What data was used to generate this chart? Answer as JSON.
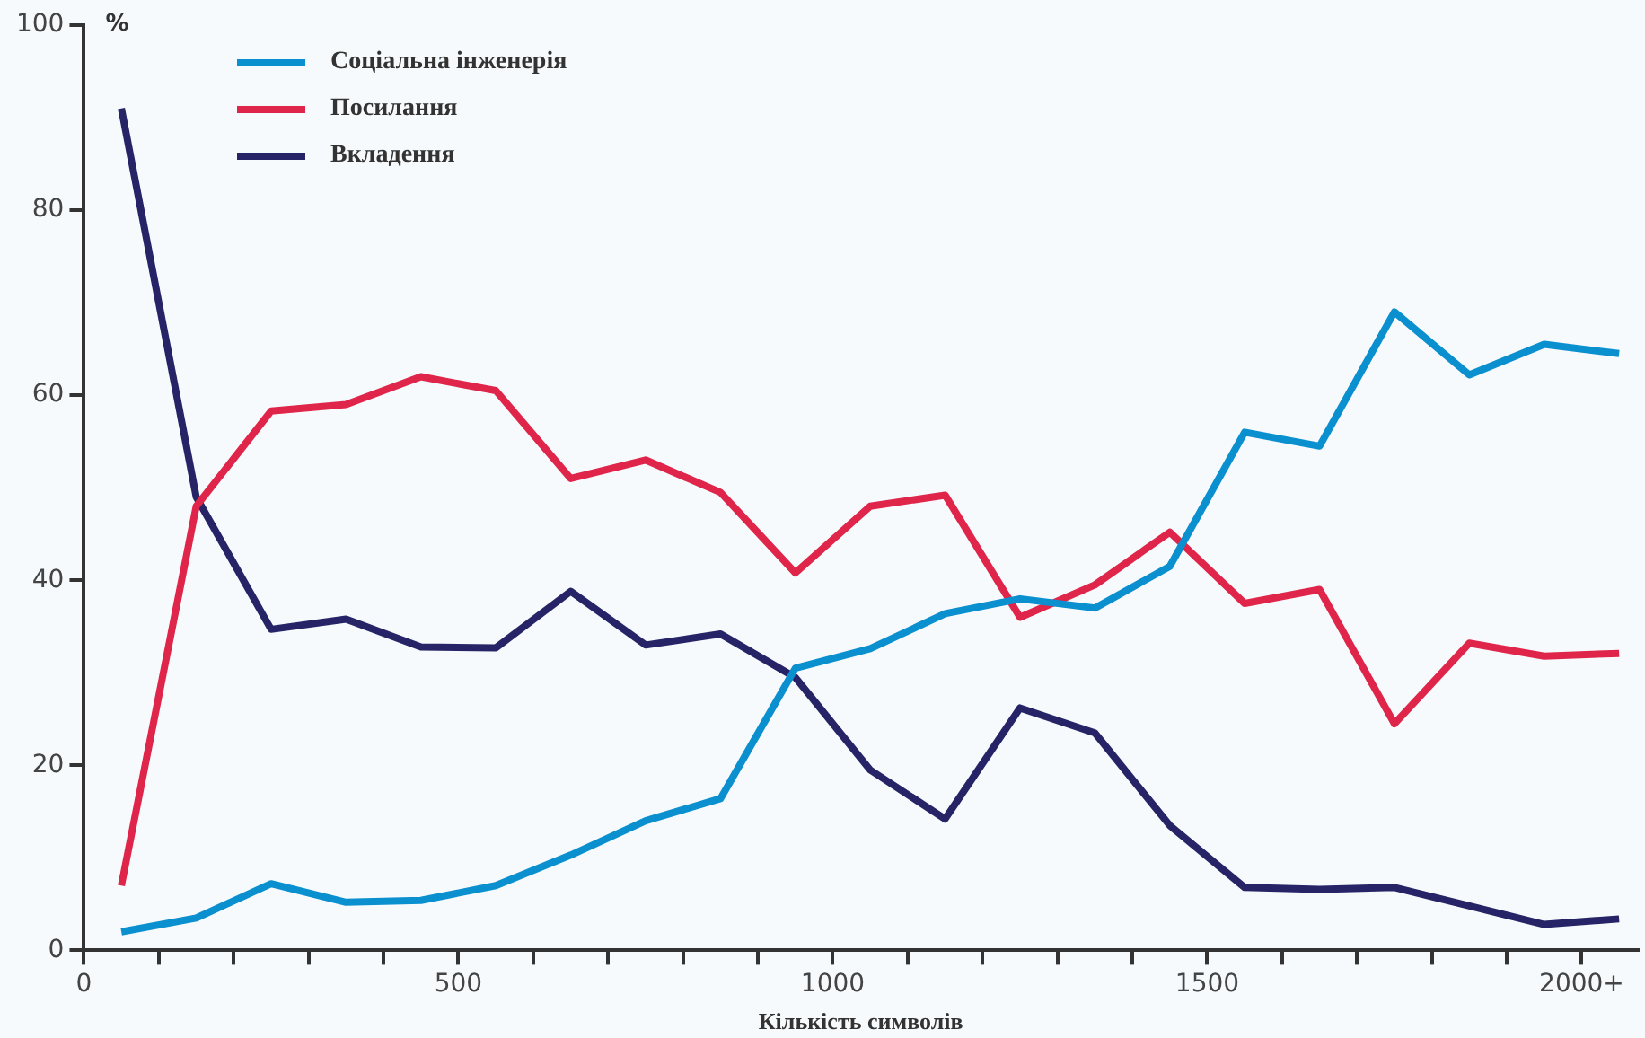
{
  "chart_data": {
    "type": "line",
    "xlabel": "Кількість символів",
    "ylabel": "%",
    "x": [
      50,
      150,
      250,
      350,
      450,
      550,
      650,
      750,
      850,
      950,
      1050,
      1150,
      1250,
      1350,
      1450,
      1550,
      1650,
      1750,
      1850,
      1950,
      2050
    ],
    "series": [
      {
        "name": "Соціальна інженерія",
        "color": "#0a8fcf",
        "values": [
          2,
          3.5,
          7.2,
          5.2,
          5.4,
          7,
          10.3,
          14,
          16.4,
          30.5,
          32.6,
          36.4,
          38,
          37,
          41.5,
          56,
          54.5,
          69,
          62.2,
          65.5,
          64.5
        ]
      },
      {
        "name": "Посилання",
        "color": "#e0254a",
        "values": [
          7,
          48,
          58.3,
          59,
          62,
          60.5,
          51,
          53,
          49.5,
          40.8,
          48,
          49.2,
          36,
          39.5,
          45.2,
          37.5,
          39,
          24.5,
          33.2,
          31.8,
          32.1
        ]
      },
      {
        "name": "Вкладення",
        "color": "#262466",
        "values": [
          91,
          49,
          34.7,
          35.8,
          32.8,
          32.7,
          38.8,
          33,
          34.2,
          29.5,
          19.5,
          14.2,
          26.2,
          23.5,
          13.5,
          6.8,
          6.6,
          6.8,
          4.8,
          2.8,
          3.4
        ]
      }
    ],
    "xlim": [
      0,
      2075
    ],
    "xticks": [
      0,
      {
        "value": 100,
        "label": null
      },
      {
        "value": 200,
        "label": null
      },
      {
        "value": 300,
        "label": null
      },
      {
        "value": 400,
        "label": null
      },
      500,
      {
        "value": 600,
        "label": null
      },
      {
        "value": 700,
        "label": null
      },
      {
        "value": 800,
        "label": null
      },
      {
        "value": 900,
        "label": null
      },
      1000,
      {
        "value": 1100,
        "label": null
      },
      {
        "value": 1200,
        "label": null
      },
      {
        "value": 1300,
        "label": null
      },
      {
        "value": 1400,
        "label": null
      },
      1500,
      {
        "value": 1600,
        "label": null
      },
      {
        "value": 1700,
        "label": null
      },
      {
        "value": 1800,
        "label": null
      },
      {
        "value": 1900,
        "label": null
      },
      {
        "value": 2000,
        "label": "2000+"
      }
    ],
    "ylim": [
      0,
      100
    ],
    "yticks": [
      0,
      20,
      40,
      60,
      80,
      100
    ],
    "grid": false,
    "legend": "top left",
    "marker": "none",
    "line_style": "solid"
  }
}
